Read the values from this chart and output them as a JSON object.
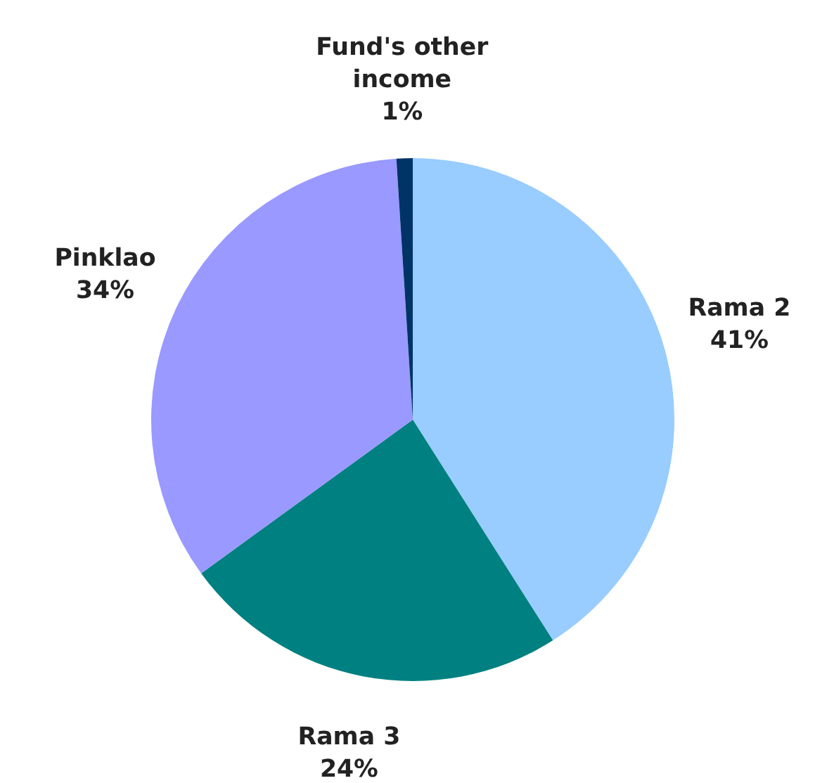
{
  "chart_data": {
    "type": "pie",
    "categories": [
      "Rama 2",
      "Rama 3",
      "Pinklao",
      "Fund's other income"
    ],
    "values": [
      41,
      24,
      34,
      1
    ],
    "colors": [
      "#99ccff",
      "#008080",
      "#9999ff",
      "#003366"
    ],
    "value_labels": [
      "41%",
      "24%",
      "34%",
      "1%"
    ]
  }
}
